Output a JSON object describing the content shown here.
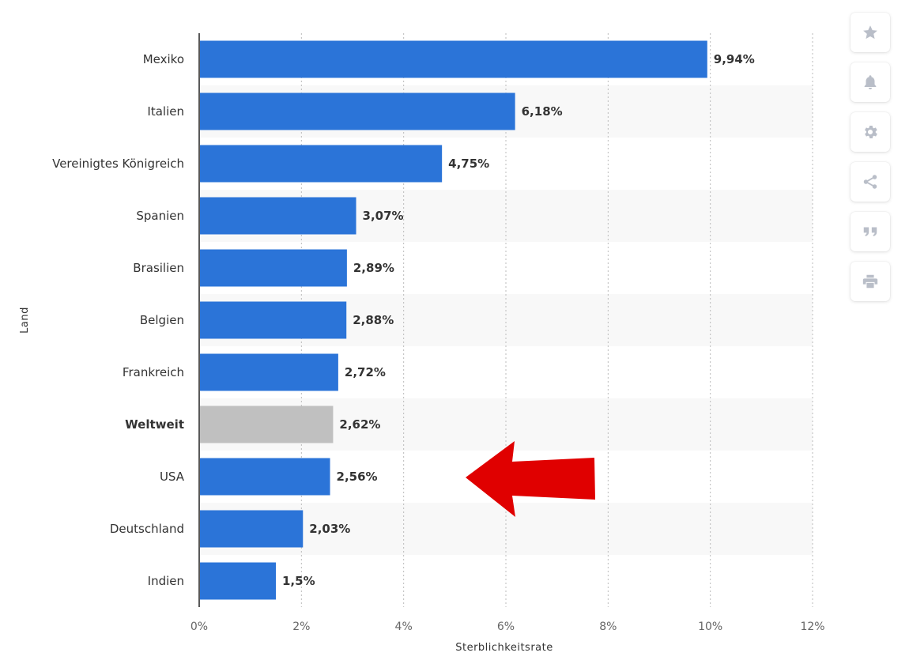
{
  "chart_data": {
    "type": "bar",
    "orientation": "horizontal",
    "categories": [
      "Mexiko",
      "Italien",
      "Vereinigtes Königreich",
      "Spanien",
      "Brasilien",
      "Belgien",
      "Frankreich",
      "Weltweit",
      "USA",
      "Deutschland",
      "Indien"
    ],
    "values": [
      9.94,
      6.18,
      4.75,
      3.07,
      2.89,
      2.88,
      2.72,
      2.62,
      2.56,
      2.03,
      1.5
    ],
    "value_labels": [
      "9,94%",
      "6,18%",
      "4,75%",
      "3,07%",
      "2,89%",
      "2,88%",
      "2,72%",
      "2,62%",
      "2,56%",
      "2,03%",
      "1,5%"
    ],
    "highlight_category": "Weltweit",
    "x_ticks": [
      0,
      2,
      4,
      6,
      8,
      10,
      12
    ],
    "x_tick_labels": [
      "0%",
      "2%",
      "4%",
      "6%",
      "8%",
      "10%",
      "12%"
    ],
    "xlim": [
      0,
      12
    ],
    "xlabel": "Sterblichkeitsrate",
    "ylabel": "Land",
    "grid": true,
    "colors": {
      "bar": "#2b74d8",
      "highlight_bar": "#c0c0c0",
      "stripe": "#f8f8f8",
      "gridline": "#bbbbbb",
      "arrow": "#e00000"
    },
    "annotation": {
      "type": "arrow",
      "points_to": "USA",
      "direction": "left"
    }
  },
  "toolbar": {
    "buttons": [
      {
        "name": "favorite-button",
        "icon": "star-icon"
      },
      {
        "name": "notification-button",
        "icon": "bell-icon"
      },
      {
        "name": "settings-button",
        "icon": "gear-icon"
      },
      {
        "name": "share-button",
        "icon": "share-icon"
      },
      {
        "name": "cite-button",
        "icon": "quote-icon"
      },
      {
        "name": "print-button",
        "icon": "printer-icon"
      }
    ],
    "icon_color": "#b9bec8"
  }
}
